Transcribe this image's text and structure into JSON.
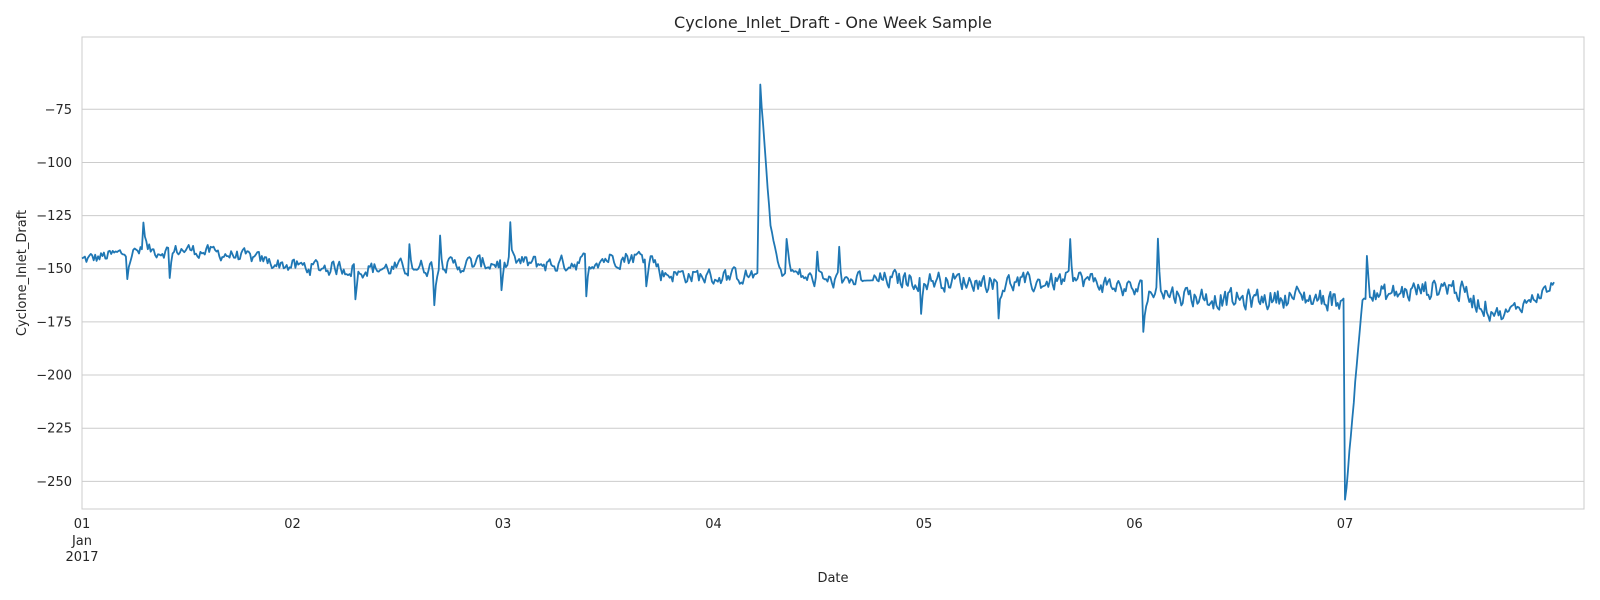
{
  "chart_data": {
    "type": "line",
    "title": "Cyclone_Inlet_Draft - One Week Sample",
    "xlabel": "Date",
    "ylabel": "Cyclone_Inlet_Draft",
    "x_ticks": [
      {
        "value": 0,
        "label": "01",
        "sublabels": [
          "Jan",
          "2017"
        ]
      },
      {
        "value": 1,
        "label": "02"
      },
      {
        "value": 2,
        "label": "03"
      },
      {
        "value": 3,
        "label": "04"
      },
      {
        "value": 4,
        "label": "05"
      },
      {
        "value": 5,
        "label": "06"
      },
      {
        "value": 6,
        "label": "07"
      }
    ],
    "x_range": [
      "2017-01-01",
      "2017-01-08"
    ],
    "y_ticks": [
      -75,
      -100,
      -125,
      -150,
      -175,
      -200,
      -225,
      -250
    ],
    "y_tick_labels": [
      "−75",
      "−100",
      "−125",
      "−150",
      "−175",
      "−200",
      "−225",
      "−250"
    ],
    "ylim": [
      -263,
      -41
    ],
    "grid": "horizontal",
    "legend": "none",
    "series": [
      {
        "color": "#1f77b4",
        "sampling": "approx. 10-minute intervals, 2017-01-01 00:00 to 2017-01-07 23:50 (values approximate, estimated from plot)",
        "anchors": [
          {
            "x": "2017-01-01 00:00",
            "y": -146
          },
          {
            "x": "2017-01-01 06:00",
            "y": -142
          },
          {
            "x": "2017-01-01 12:00",
            "y": -141
          },
          {
            "x": "2017-01-01 18:00",
            "y": -144
          },
          {
            "x": "2017-01-02 00:00",
            "y": -149
          },
          {
            "x": "2017-01-02 12:00",
            "y": -150
          },
          {
            "x": "2017-01-03 00:00",
            "y": -147
          },
          {
            "x": "2017-01-03 06:00",
            "y": -148
          },
          {
            "x": "2017-01-03 12:00",
            "y": -145
          },
          {
            "x": "2017-01-03 17:00",
            "y": -144
          },
          {
            "x": "2017-01-03 18:00",
            "y": -152
          },
          {
            "x": "2017-01-04 00:00",
            "y": -154
          },
          {
            "x": "2017-01-04 05:00",
            "y": -153
          },
          {
            "x": "2017-01-04 05:20",
            "y": -64
          },
          {
            "x": "2017-01-04 06:30",
            "y": -130
          },
          {
            "x": "2017-01-04 07:30",
            "y": -150
          },
          {
            "x": "2017-01-04 12:00",
            "y": -156
          },
          {
            "x": "2017-01-05 00:00",
            "y": -155
          },
          {
            "x": "2017-01-05 12:00",
            "y": -157
          },
          {
            "x": "2017-01-05 18:00",
            "y": -155
          },
          {
            "x": "2017-01-06 00:00",
            "y": -160
          },
          {
            "x": "2017-01-06 12:00",
            "y": -165
          },
          {
            "x": "2017-01-06 18:00",
            "y": -163
          },
          {
            "x": "2017-01-06 23:50",
            "y": -165
          },
          {
            "x": "2017-01-07 00:00",
            "y": -260
          },
          {
            "x": "2017-01-07 02:00",
            "y": -164
          },
          {
            "x": "2017-01-07 12:00",
            "y": -158
          },
          {
            "x": "2017-01-07 18:00",
            "y": -172
          },
          {
            "x": "2017-01-07 23:50",
            "y": -158
          }
        ]
      }
    ]
  }
}
